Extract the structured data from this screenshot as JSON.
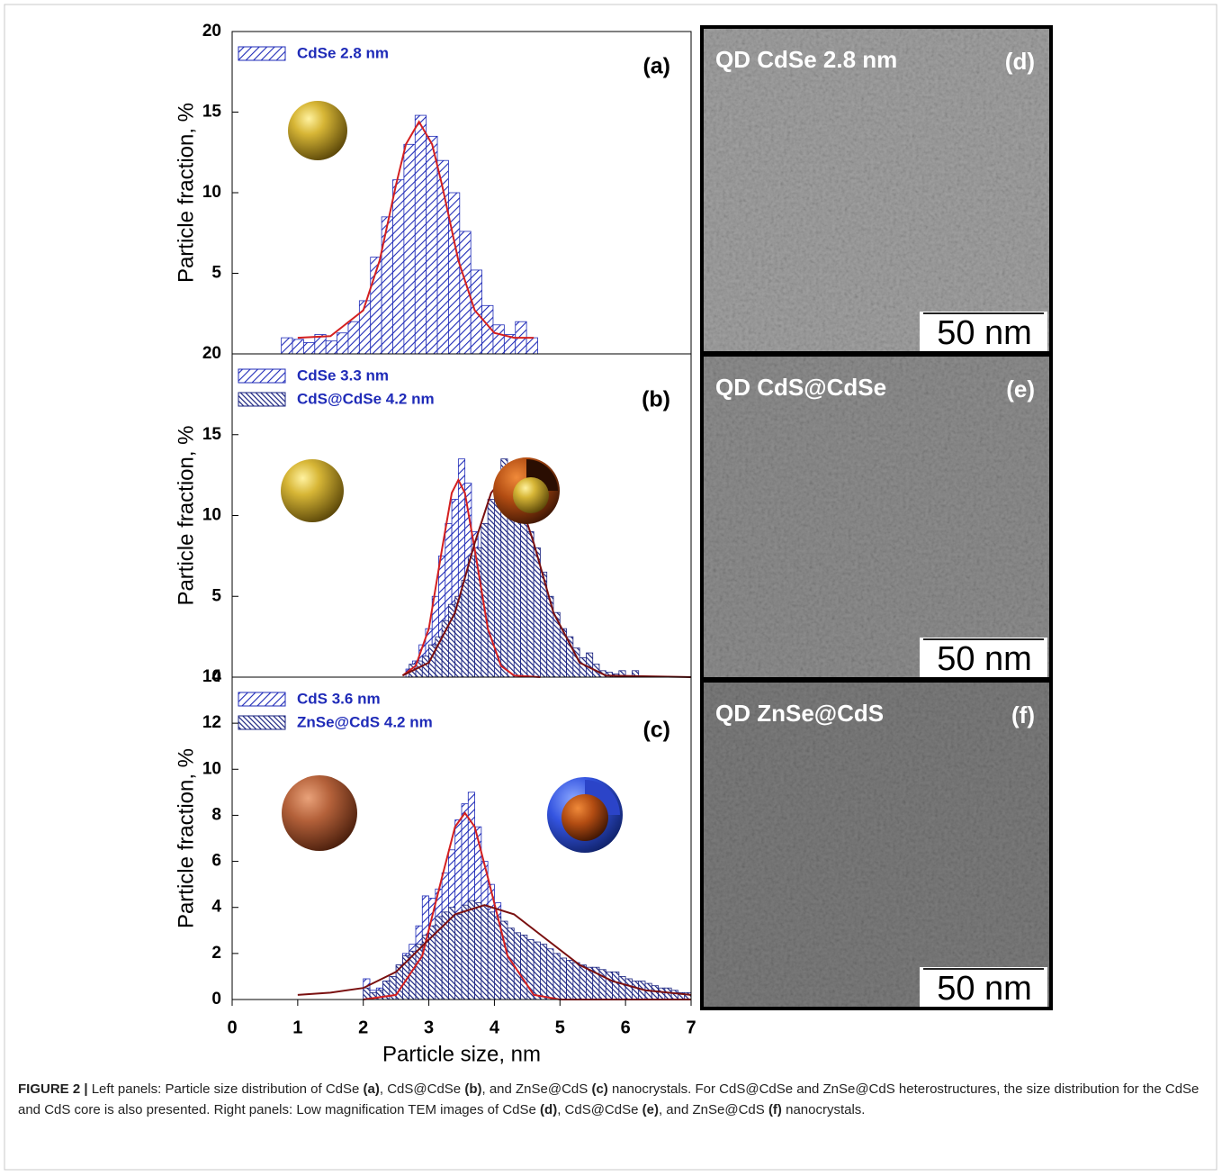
{
  "chart_data": [
    {
      "type": "histogram",
      "panel_label": "(a)",
      "y_label": "Particle fraction, %",
      "xlim": [
        0,
        7
      ],
      "ylim": [
        0,
        20
      ],
      "yticks": [
        5,
        10,
        15,
        20
      ],
      "series": [
        {
          "name": "CdSe 2.8 nm",
          "color": "#1f2bb8",
          "hatch": "/",
          "bins": [
            0.75,
            0.92,
            1.09,
            1.26,
            1.43,
            1.6,
            1.77,
            1.94,
            2.11,
            2.28,
            2.45,
            2.62,
            2.79,
            2.96,
            3.13,
            3.3,
            3.47,
            3.64,
            3.81,
            3.98,
            4.15,
            4.32,
            4.49,
            4.66
          ],
          "values": [
            1.0,
            0.9,
            0.7,
            1.2,
            0.8,
            1.3,
            2.0,
            3.3,
            6.0,
            8.5,
            10.8,
            13.0,
            14.8,
            13.5,
            12.0,
            10.0,
            7.6,
            5.2,
            3.0,
            1.8,
            1.2,
            2.0,
            1.0
          ]
        }
      ],
      "curves": [
        {
          "color": "#d42020",
          "x": [
            1.0,
            1.5,
            2.0,
            2.25,
            2.5,
            2.65,
            2.85,
            3.05,
            3.2,
            3.45,
            3.7,
            4.0,
            4.3,
            4.6
          ],
          "values": [
            1.0,
            1.1,
            2.7,
            5.8,
            10.5,
            13.0,
            14.4,
            13.0,
            10.5,
            5.8,
            2.7,
            1.3,
            1.0,
            1.0
          ]
        }
      ]
    },
    {
      "type": "histogram",
      "panel_label": "(b)",
      "y_label": "Particle fraction, %",
      "xlim": [
        0,
        7
      ],
      "ylim": [
        0,
        20
      ],
      "yticks": [
        0,
        5,
        10,
        15,
        20
      ],
      "series": [
        {
          "name": "CdSe 3.3 nm",
          "color": "#1f2bb8",
          "hatch": "/",
          "bins": [
            2.65,
            2.75,
            2.85,
            2.95,
            3.05,
            3.15,
            3.25,
            3.35,
            3.45,
            3.55,
            3.65,
            3.75,
            3.85,
            3.95,
            4.05,
            4.15,
            4.25,
            4.35,
            4.45,
            4.55,
            4.65
          ],
          "values": [
            0.5,
            1,
            2,
            3,
            5,
            7.5,
            9.5,
            11,
            13.5,
            12,
            9,
            7,
            5,
            3.5,
            2.5,
            1.5,
            1,
            0.7,
            0.5,
            0.3
          ]
        },
        {
          "name": "CdS@CdSe 4.2 nm",
          "color": "#1a2380",
          "hatch": "\\",
          "bins": [
            2.7,
            2.8,
            2.9,
            3.0,
            3.1,
            3.2,
            3.3,
            3.4,
            3.5,
            3.6,
            3.7,
            3.8,
            3.9,
            4.0,
            4.1,
            4.2,
            4.3,
            4.4,
            4.5,
            4.6,
            4.7,
            4.8,
            4.9,
            5.0,
            5.1,
            5.2,
            5.3,
            5.4,
            5.5,
            5.6,
            5.7,
            5.8,
            5.9,
            6.0,
            6.1,
            6.2
          ],
          "values": [
            0.8,
            1,
            1.3,
            2,
            2.5,
            3.5,
            4.5,
            5,
            6,
            7.5,
            8,
            9.5,
            11,
            12,
            13.5,
            12.5,
            11.5,
            10.5,
            9,
            8,
            6.5,
            5,
            4,
            3,
            2.5,
            1.8,
            1.2,
            1.5,
            0.8,
            0.4,
            0.3,
            0.2,
            0.4,
            0,
            0.4
          ]
        }
      ],
      "curves": [
        {
          "color": "#d42020",
          "x": [
            2.6,
            2.8,
            3.0,
            3.2,
            3.35,
            3.45,
            3.55,
            3.7,
            3.9,
            4.1,
            4.3,
            4.7
          ],
          "values": [
            0.1,
            0.7,
            3.0,
            7.9,
            11.4,
            12.2,
            11.4,
            7.9,
            3.0,
            0.7,
            0.1,
            0
          ]
        },
        {
          "color": "#7a1010",
          "x": [
            2.6,
            3.0,
            3.4,
            3.7,
            3.95,
            4.15,
            4.35,
            4.6,
            4.9,
            5.3,
            5.7,
            7.0
          ],
          "values": [
            0.1,
            0.9,
            4.0,
            8.3,
            11.4,
            12.4,
            11.4,
            8.3,
            4.0,
            0.9,
            0.1,
            0
          ]
        }
      ]
    },
    {
      "type": "histogram",
      "panel_label": "(c)",
      "y_label": "Particle fraction, %",
      "x_label": "Particle size, nm",
      "xlim": [
        0,
        7
      ],
      "ylim": [
        0,
        14
      ],
      "yticks": [
        0,
        2,
        4,
        6,
        8,
        10,
        12,
        14
      ],
      "xticks": [
        0,
        1,
        2,
        3,
        4,
        5,
        6,
        7
      ],
      "series": [
        {
          "name": "CdS 3.6 nm",
          "color": "#1f2bb8",
          "hatch": "/",
          "bins": [
            2.0,
            2.1,
            2.2,
            2.3,
            2.4,
            2.5,
            2.6,
            2.7,
            2.8,
            2.9,
            3.0,
            3.1,
            3.2,
            3.3,
            3.4,
            3.5,
            3.6,
            3.7,
            3.8,
            3.9,
            4.0,
            4.1,
            4.2,
            4.3,
            4.4,
            4.5,
            4.6,
            4.7,
            4.8
          ],
          "values": [
            0.9,
            0.4,
            0.5,
            0.8,
            1,
            1.5,
            2,
            2.4,
            3.2,
            4.5,
            4.4,
            4.8,
            5.5,
            6.5,
            7.8,
            8.5,
            9,
            7.5,
            6,
            5,
            4.2,
            3,
            2,
            1.5,
            1,
            0.7,
            0.5,
            0.3
          ]
        },
        {
          "name": "ZnSe@CdS 4.2 nm",
          "color": "#1a2380",
          "hatch": "\\",
          "bins": [
            2.0,
            2.1,
            2.2,
            2.3,
            2.4,
            2.5,
            2.6,
            2.7,
            2.8,
            2.9,
            3.0,
            3.1,
            3.2,
            3.3,
            3.4,
            3.5,
            3.6,
            3.7,
            3.8,
            3.9,
            4.0,
            4.1,
            4.2,
            4.3,
            4.4,
            4.5,
            4.6,
            4.7,
            4.8,
            4.9,
            5.0,
            5.1,
            5.2,
            5.3,
            5.4,
            5.5,
            5.6,
            5.7,
            5.8,
            5.9,
            6.0,
            6.1,
            6.2,
            6.3,
            6.4,
            6.5,
            6.6,
            6.7,
            6.8,
            6.9,
            7.0
          ],
          "values": [
            0.5,
            0.3,
            0.4,
            0.8,
            1,
            1.5,
            1.9,
            2.1,
            2.4,
            2.8,
            3.2,
            3.6,
            3.8,
            4,
            3.7,
            4.1,
            4.3,
            4.2,
            4.1,
            3.8,
            3.6,
            3.4,
            3.1,
            2.9,
            2.8,
            2.6,
            2.5,
            2.4,
            2.2,
            2.0,
            1.8,
            1.7,
            1.6,
            1.5,
            1.4,
            1.4,
            1.3,
            1.2,
            1.2,
            1.0,
            0.9,
            0.8,
            0.8,
            0.7,
            0.6,
            0.5,
            0.5,
            0.4,
            0.3,
            0.3
          ]
        }
      ],
      "curves": [
        {
          "color": "#d42020",
          "x": [
            2.0,
            2.5,
            2.9,
            3.2,
            3.4,
            3.55,
            3.7,
            3.9,
            4.2,
            4.6,
            5.0,
            7.0
          ],
          "values": [
            0,
            0.2,
            1.9,
            5.3,
            7.5,
            8.1,
            7.5,
            5.3,
            1.9,
            0.2,
            0,
            0
          ]
        },
        {
          "color": "#7a1010",
          "x": [
            1.0,
            1.5,
            2.0,
            2.5,
            3.0,
            3.4,
            3.85,
            4.3,
            4.8,
            5.3,
            5.8,
            6.3,
            7.0
          ],
          "values": [
            0.2,
            0.3,
            0.5,
            1.2,
            2.6,
            3.7,
            4.1,
            3.7,
            2.6,
            1.5,
            0.8,
            0.4,
            0.2
          ]
        }
      ]
    }
  ],
  "images": [
    {
      "label": "QD CdSe 2.8 nm",
      "panel_label": "(d)",
      "scale": "50 nm"
    },
    {
      "label": "QD CdS@CdSe",
      "panel_label": "(e)",
      "scale": "50 nm"
    },
    {
      "label": "QD ZnSe@CdS",
      "panel_label": "(f)",
      "scale": "50 nm"
    }
  ],
  "caption": [
    "FIGURE 2 |",
    " Left panels: Particle size distribution of CdSe ",
    "(a)",
    ", CdS@CdSe ",
    "(b)",
    ", and ZnSe@CdS ",
    "(c)",
    " nanocrystals. For CdS@CdSe and ZnSe@CdS heterostructures, the size distribution for the CdSe and CdS core is also presented. Right panels: Low magnification TEM images of CdSe ",
    "(d)",
    ", CdS@CdSe ",
    "(e)",
    ", and ZnSe@CdS ",
    "(f)",
    " nanocrystals."
  ]
}
